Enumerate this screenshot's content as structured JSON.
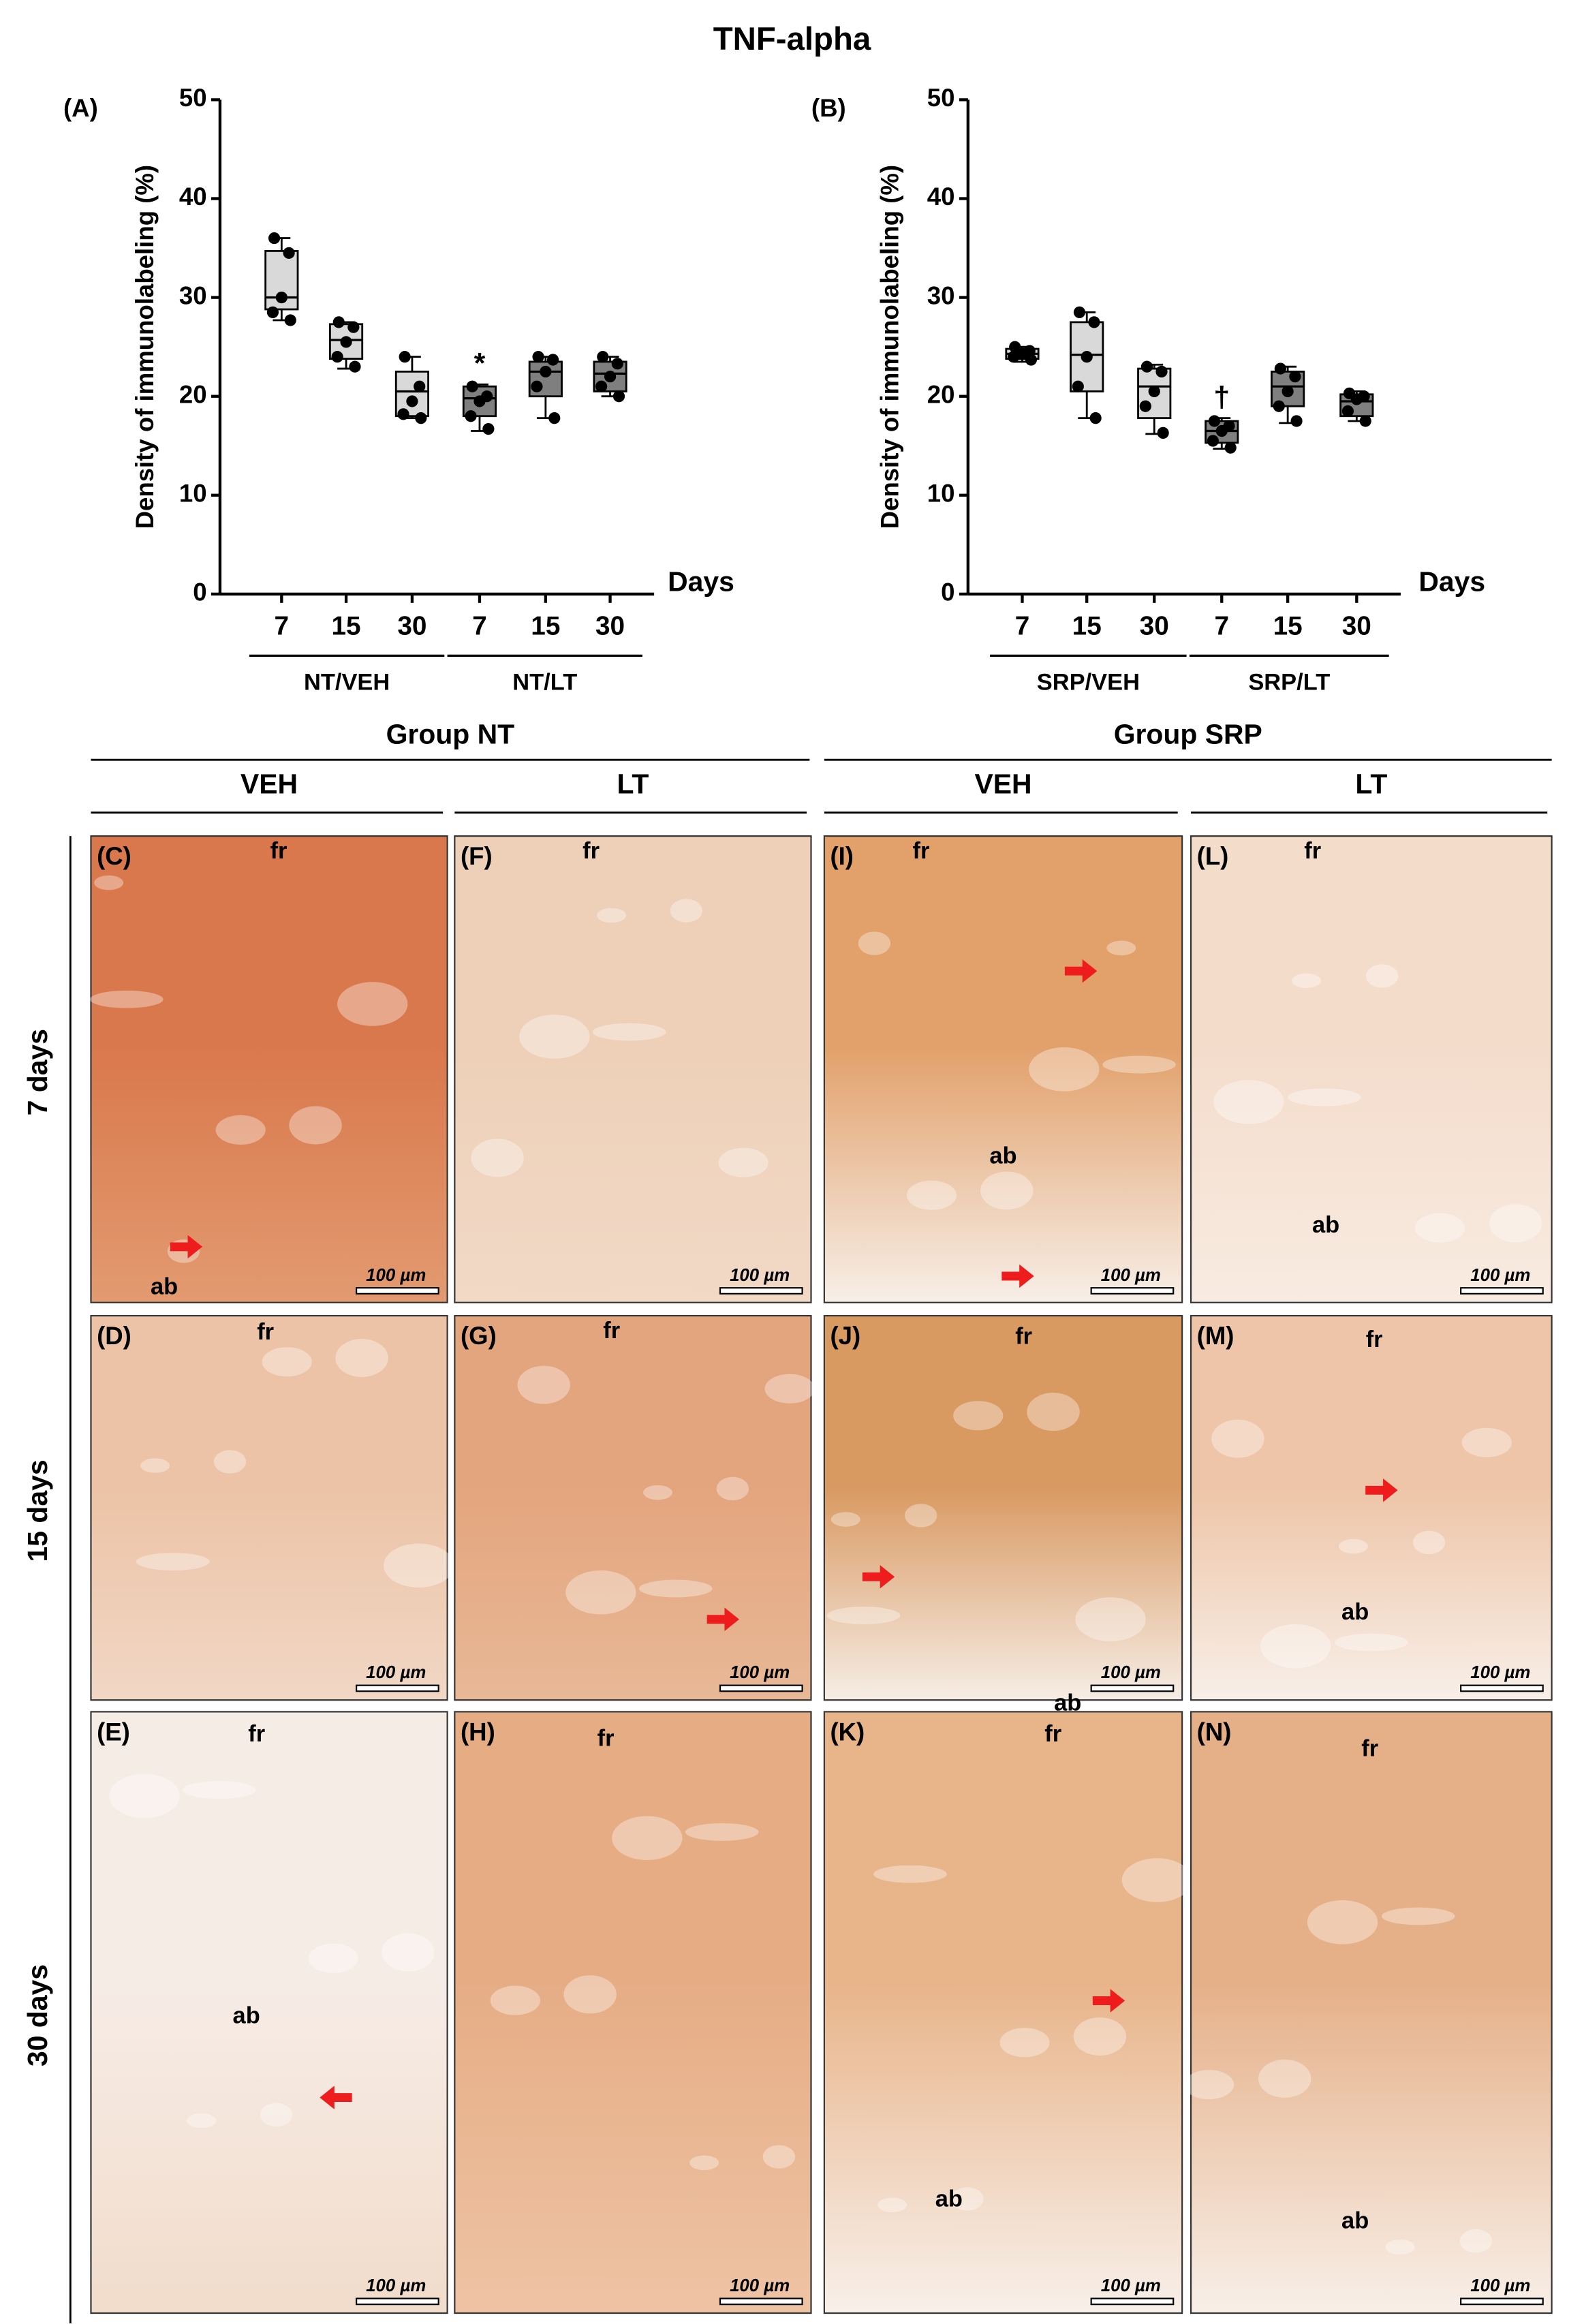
{
  "figure_title": "TNF-alpha",
  "chart_data": [
    {
      "type": "box",
      "panel_label": "(A)",
      "ylabel": "Density of immunolabeling (%)",
      "xlabel": "Days",
      "categories": [
        "7",
        "15",
        "30",
        "7",
        "15",
        "30"
      ],
      "groups": [
        {
          "name": "NT/VEH",
          "color": "#d9d9d9"
        },
        {
          "name": "NT/LT",
          "color": "#7f7f7f"
        }
      ],
      "boxes": [
        {
          "group": 0,
          "min": 27.7,
          "q1": 28.8,
          "median": 30,
          "q3": 34.7,
          "max": 36,
          "points": [
            36,
            34.5,
            30,
            28.5,
            27.7
          ]
        },
        {
          "group": 0,
          "min": 22.8,
          "q1": 23.8,
          "median": 25.7,
          "q3": 27.3,
          "max": 27.5,
          "points": [
            27.5,
            27,
            25.5,
            24,
            23
          ]
        },
        {
          "group": 0,
          "min": 17.8,
          "q1": 18,
          "median": 20.5,
          "q3": 22.5,
          "max": 24,
          "points": [
            24,
            21,
            19.5,
            18.2,
            17.8
          ]
        },
        {
          "group": 1,
          "min": 16.5,
          "q1": 18,
          "median": 19.8,
          "q3": 21,
          "max": 21.2,
          "points": [
            21,
            20,
            19.5,
            18,
            16.7
          ]
        },
        {
          "group": 1,
          "min": 17.8,
          "q1": 20,
          "median": 22.5,
          "q3": 23.5,
          "max": 24,
          "points": [
            24,
            23.7,
            22.5,
            21,
            17.8
          ]
        },
        {
          "group": 1,
          "min": 20,
          "q1": 20.5,
          "median": 22.3,
          "q3": 23.5,
          "max": 24,
          "points": [
            24,
            23.3,
            22,
            21,
            20
          ]
        }
      ],
      "annotations": [
        {
          "index": 3,
          "text": "*",
          "color": "#a3282a"
        }
      ],
      "ylim": [
        0,
        50
      ],
      "yticks": [
        0,
        10,
        20,
        30,
        40,
        50
      ]
    },
    {
      "type": "box",
      "panel_label": "(B)",
      "ylabel": "Density of immunolabeling (%)",
      "xlabel": "Days",
      "categories": [
        "7",
        "15",
        "30",
        "7",
        "15",
        "30"
      ],
      "groups": [
        {
          "name": "SRP/VEH",
          "color": "#d9d9d9"
        },
        {
          "name": "SRP/LT",
          "color": "#7f7f7f"
        }
      ],
      "boxes": [
        {
          "group": 0,
          "min": 23.5,
          "q1": 23.8,
          "median": 24.3,
          "q3": 24.8,
          "max": 25,
          "points": [
            25,
            24.6,
            24.3,
            24,
            23.7
          ]
        },
        {
          "group": 0,
          "min": 17.8,
          "q1": 20.5,
          "median": 24.2,
          "q3": 27.5,
          "max": 28.5,
          "points": [
            28.5,
            27.5,
            24,
            21,
            17.8
          ]
        },
        {
          "group": 0,
          "min": 16.2,
          "q1": 17.8,
          "median": 21,
          "q3": 22.8,
          "max": 23.2,
          "points": [
            23,
            22.5,
            20.5,
            19,
            16.3
          ]
        },
        {
          "group": 1,
          "min": 14.7,
          "q1": 15.3,
          "median": 16.5,
          "q3": 17.5,
          "max": 17.8,
          "points": [
            17.5,
            17,
            16.5,
            15.5,
            14.8
          ]
        },
        {
          "group": 1,
          "min": 17.3,
          "q1": 19,
          "median": 21,
          "q3": 22.5,
          "max": 23,
          "points": [
            22.8,
            22,
            20.5,
            19,
            17.5
          ]
        },
        {
          "group": 1,
          "min": 17.5,
          "q1": 18,
          "median": 19.5,
          "q3": 20.2,
          "max": 20.5,
          "points": [
            20.3,
            20,
            19.7,
            18.5,
            17.5
          ]
        }
      ],
      "annotations": [
        {
          "index": 3,
          "text": "†",
          "color": "#c0282a"
        }
      ],
      "ylim": [
        0,
        50
      ],
      "yticks": [
        0,
        10,
        20,
        30,
        40,
        50
      ]
    }
  ],
  "section_groups": [
    "Group NT",
    "Group SRP"
  ],
  "columns": [
    "VEH",
    "LT",
    "VEH",
    "LT"
  ],
  "rows": [
    "7 days",
    "15 days",
    "30 days"
  ],
  "panels": [
    {
      "label": "(C)",
      "texts": [
        "fr",
        "ab"
      ],
      "scale": "100 µm"
    },
    {
      "label": "(D)",
      "texts": [
        "fr"
      ],
      "scale": "100 µm"
    },
    {
      "label": "(E)",
      "texts": [
        "fr",
        "ab"
      ],
      "scale": "100 µm"
    },
    {
      "label": "(F)",
      "texts": [
        "fr"
      ],
      "scale": "100 µm"
    },
    {
      "label": "(G)",
      "texts": [
        "fr"
      ],
      "scale": "100 µm"
    },
    {
      "label": "(H)",
      "texts": [
        "fr"
      ],
      "scale": "100 µm"
    },
    {
      "label": "(I)",
      "texts": [
        "fr",
        "ab"
      ],
      "scale": "100 µm"
    },
    {
      "label": "(J)",
      "texts": [
        "fr",
        "ab"
      ],
      "scale": "100 µm"
    },
    {
      "label": "(K)",
      "texts": [
        "fr",
        "ab"
      ],
      "scale": "100 µm"
    },
    {
      "label": "(L)",
      "texts": [
        "fr",
        "ab"
      ],
      "scale": "100 µm"
    },
    {
      "label": "(M)",
      "texts": [
        "fr",
        "ab"
      ],
      "scale": "100 µm"
    },
    {
      "label": "(N)",
      "texts": [
        "fr",
        "ab"
      ],
      "scale": "100 µm"
    }
  ]
}
